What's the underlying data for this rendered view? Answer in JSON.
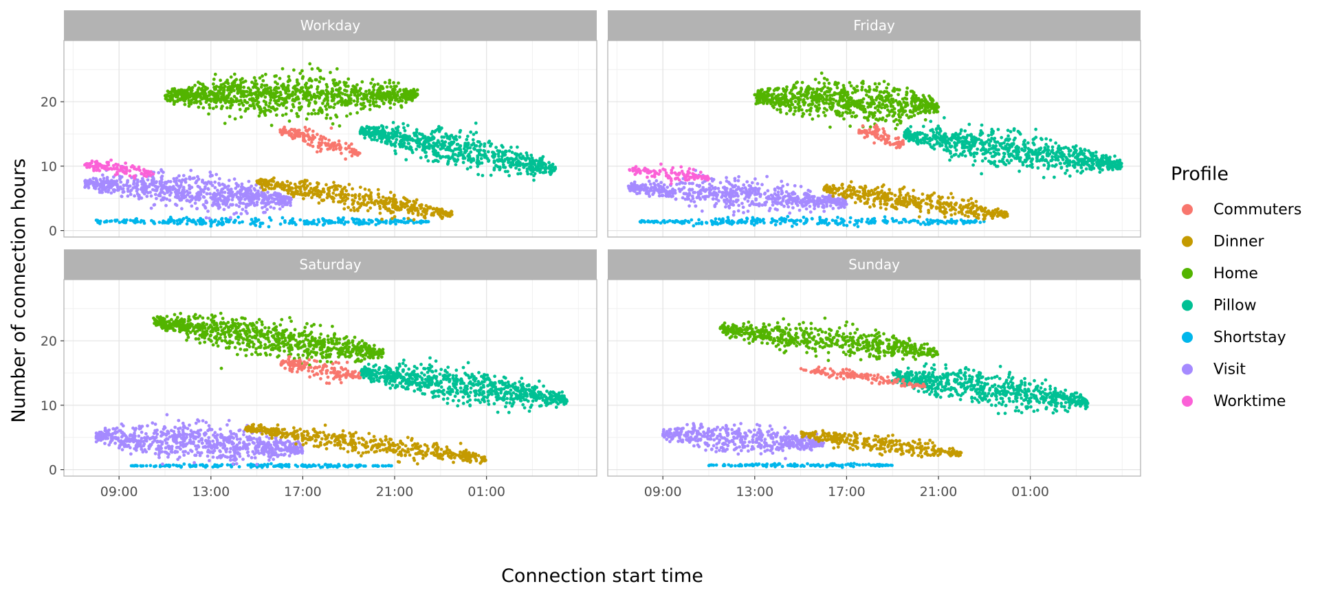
{
  "chart_data": {
    "type": "scatter",
    "xlabel": "Connection start time",
    "ylabel": "Number of connection hours",
    "x_unit": "hours",
    "x_ticks": [
      {
        "value": 9,
        "label": "09:00"
      },
      {
        "value": 13,
        "label": "13:00"
      },
      {
        "value": 17,
        "label": "17:00"
      },
      {
        "value": 21,
        "label": "21:00"
      },
      {
        "value": 25,
        "label": "01:00"
      }
    ],
    "y_ticks": [
      0,
      10,
      20
    ],
    "xlim": [
      6.6,
      29.8
    ],
    "ylim": [
      -1,
      29.5
    ],
    "grid": true,
    "legend": {
      "title": "Profile",
      "position": "right",
      "items": [
        {
          "name": "Commuters",
          "color": "#F8766D"
        },
        {
          "name": "Dinner",
          "color": "#C49A00"
        },
        {
          "name": "Home",
          "color": "#53B400"
        },
        {
          "name": "Pillow",
          "color": "#00C094"
        },
        {
          "name": "Shortstay",
          "color": "#00B6EB"
        },
        {
          "name": "Visit",
          "color": "#A58AFF"
        },
        {
          "name": "Worktime",
          "color": "#FB61D7"
        }
      ]
    },
    "panels": [
      {
        "title": "Workday",
        "clusters": [
          {
            "profile": "Shortstay",
            "x_range": [
              8,
              22.5
            ],
            "y_center": 1.4,
            "y_spread": 0.7,
            "slope": 0.0
          },
          {
            "profile": "Visit",
            "x_range": [
              7.5,
              16.5
            ],
            "y_center": 6.0,
            "y_spread": 3.0,
            "slope": -0.3
          },
          {
            "profile": "Worktime",
            "x_range": [
              7.5,
              10.5
            ],
            "y_center": 9.5,
            "y_spread": 1.3,
            "slope": -0.5
          },
          {
            "profile": "Dinner",
            "x_range": [
              15,
              23.5
            ],
            "y_center": 5.0,
            "y_spread": 2.0,
            "slope": -0.6
          },
          {
            "profile": "Home",
            "x_range": [
              11,
              22
            ],
            "y_center": 21.0,
            "y_spread": 3.5,
            "slope": 0.0
          },
          {
            "profile": "Pillow",
            "x_range": [
              19.5,
              28
            ],
            "y_center": 12.5,
            "y_spread": 3.0,
            "slope": -0.7
          },
          {
            "profile": "Commuters",
            "x_range": [
              16,
              19.5
            ],
            "y_center": 13.8,
            "y_spread": 1.6,
            "slope": -1.0
          }
        ]
      },
      {
        "title": "Friday",
        "clusters": [
          {
            "profile": "Shortstay",
            "x_range": [
              8,
              23
            ],
            "y_center": 1.4,
            "y_spread": 0.7,
            "slope": 0.0
          },
          {
            "profile": "Visit",
            "x_range": [
              7.5,
              17
            ],
            "y_center": 5.5,
            "y_spread": 2.5,
            "slope": -0.25
          },
          {
            "profile": "Worktime",
            "x_range": [
              7.5,
              11
            ],
            "y_center": 8.8,
            "y_spread": 1.2,
            "slope": -0.4
          },
          {
            "profile": "Dinner",
            "x_range": [
              16,
              24
            ],
            "y_center": 4.5,
            "y_spread": 2.0,
            "slope": -0.5
          },
          {
            "profile": "Home",
            "x_range": [
              13,
              21
            ],
            "y_center": 20.0,
            "y_spread": 3.5,
            "slope": -0.2
          },
          {
            "profile": "Pillow",
            "x_range": [
              19.5,
              29
            ],
            "y_center": 12.5,
            "y_spread": 3.0,
            "slope": -0.5
          },
          {
            "profile": "Commuters",
            "x_range": [
              17.5,
              19.5
            ],
            "y_center": 14.5,
            "y_spread": 1.6,
            "slope": -1.0
          }
        ]
      },
      {
        "title": "Saturday",
        "clusters": [
          {
            "profile": "Shortstay",
            "x_range": [
              9.5,
              21
            ],
            "y_center": 0.6,
            "y_spread": 0.3,
            "slope": 0.0
          },
          {
            "profile": "Visit",
            "x_range": [
              8,
              17
            ],
            "y_center": 4.2,
            "y_spread": 3.0,
            "slope": -0.2
          },
          {
            "profile": "Dinner",
            "x_range": [
              14.5,
              25
            ],
            "y_center": 4.0,
            "y_spread": 1.8,
            "slope": -0.45
          },
          {
            "profile": "Home",
            "x_range": [
              10.5,
              20.5
            ],
            "y_center": 20.5,
            "y_spread": 3.0,
            "slope": -0.5
          },
          {
            "profile": "Pillow",
            "x_range": [
              19.5,
              28.5
            ],
            "y_center": 13.0,
            "y_spread": 3.0,
            "slope": -0.5
          },
          {
            "profile": "Commuters",
            "x_range": [
              16,
              19.5
            ],
            "y_center": 15.5,
            "y_spread": 1.6,
            "slope": -0.6
          }
        ]
      },
      {
        "title": "Sunday",
        "clusters": [
          {
            "profile": "Shortstay",
            "x_range": [
              11,
              19
            ],
            "y_center": 0.7,
            "y_spread": 0.3,
            "slope": 0.0
          },
          {
            "profile": "Visit",
            "x_range": [
              9,
              16
            ],
            "y_center": 4.8,
            "y_spread": 2.4,
            "slope": -0.2
          },
          {
            "profile": "Dinner",
            "x_range": [
              15,
              22
            ],
            "y_center": 4.0,
            "y_spread": 1.6,
            "slope": -0.45
          },
          {
            "profile": "Home",
            "x_range": [
              11.5,
              21
            ],
            "y_center": 20.0,
            "y_spread": 2.4,
            "slope": -0.4
          },
          {
            "profile": "Pillow",
            "x_range": [
              19,
              27.5
            ],
            "y_center": 12.5,
            "y_spread": 3.0,
            "slope": -0.5
          },
          {
            "profile": "Commuters",
            "x_range": [
              15,
              20.5
            ],
            "y_center": 14.3,
            "y_spread": 0.9,
            "slope": -0.5
          }
        ]
      }
    ]
  }
}
